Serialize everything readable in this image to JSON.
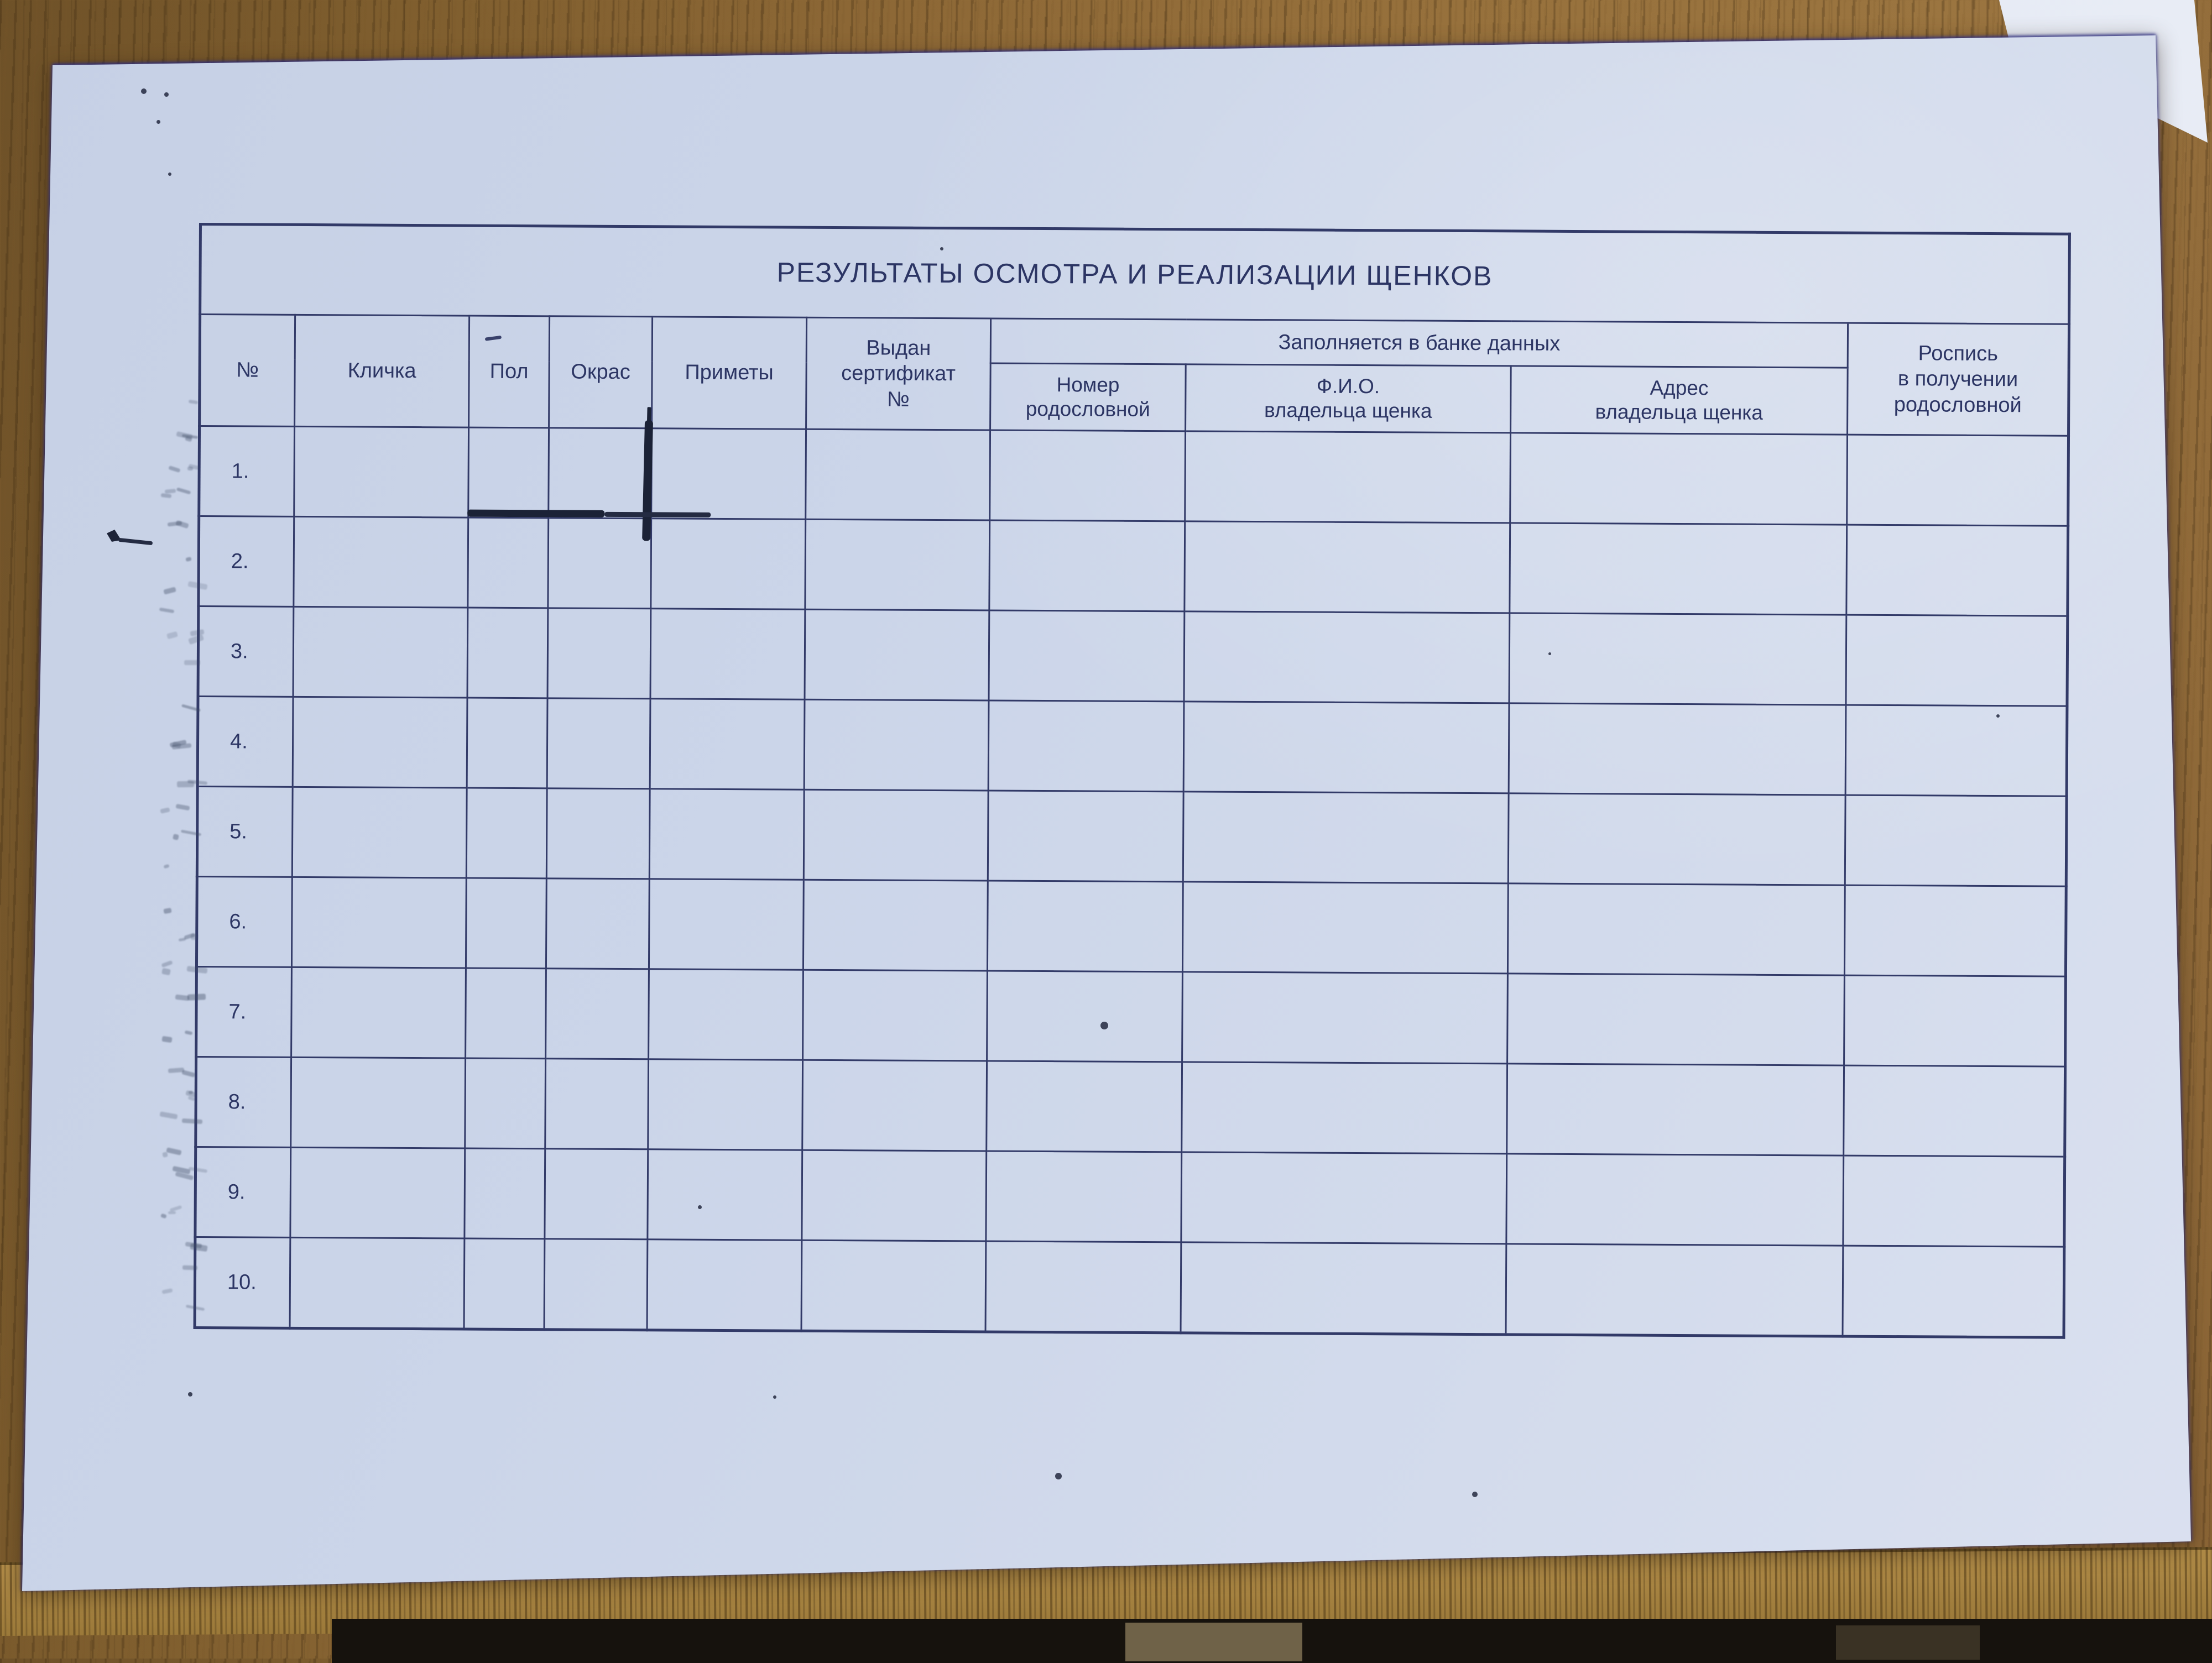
{
  "photo": {
    "scene": "paper form lying on wooden table",
    "paper_color": "#cdd6e9",
    "ink_color": "#2c3564",
    "wood_color": "#8d6836",
    "floor_color": "#16120d"
  },
  "document": {
    "title": "РЕЗУЛЬТАТЫ ОСМОТРА И РЕАЛИЗАЦИИ ЩЕНКОВ",
    "table": {
      "headers": {
        "num": "№",
        "name": "Кличка",
        "sex": "Пол",
        "color": "Окрас",
        "marks": "Приметы",
        "certificate": "Выдан\nсертификат\n№",
        "databank_group": "Заполняется в банке данных",
        "pedigree_number": "Номер\nродословной",
        "owner_name": "Ф.И.О.\nвладельца щенка",
        "owner_address": "Адрес\nвладельца щенка",
        "signature": "Роспись\nв получении\nродословной"
      },
      "rows": [
        {
          "num": "1."
        },
        {
          "num": "2."
        },
        {
          "num": "3."
        },
        {
          "num": "4."
        },
        {
          "num": "5."
        },
        {
          "num": "6."
        },
        {
          "num": "7."
        },
        {
          "num": "8."
        },
        {
          "num": "9."
        },
        {
          "num": "10."
        }
      ]
    }
  }
}
